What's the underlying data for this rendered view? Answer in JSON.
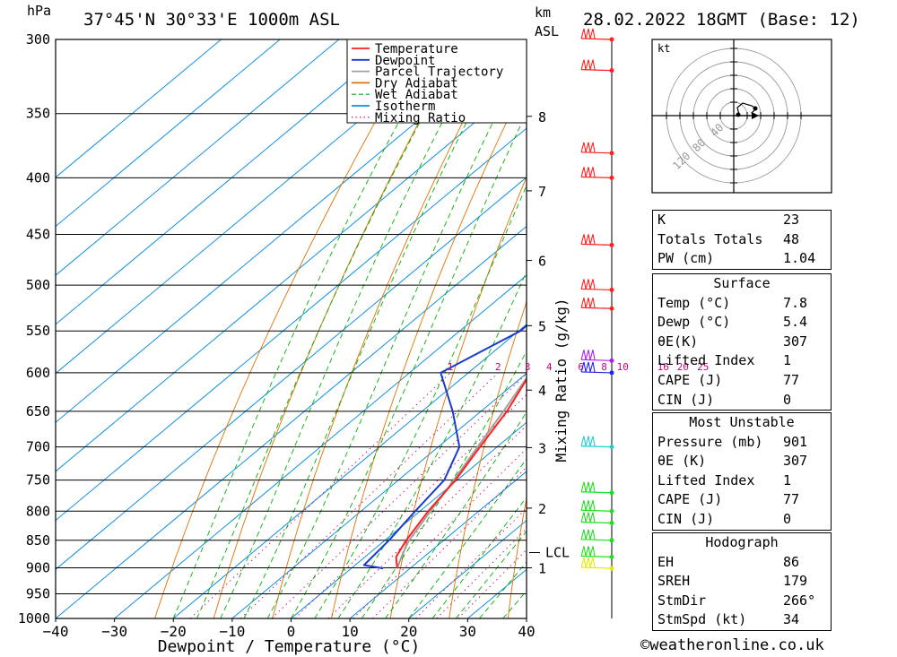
{
  "header": {
    "location": "37°45'N 30°33'E 1000m ASL",
    "datetime": "28.02.2022 18GMT (Base: 12)",
    "unit_left": "hPa",
    "unit_right_1": "km",
    "unit_right_2": "ASL"
  },
  "chart_data": {
    "type": "skew-t",
    "xlabel": "Dewpoint / Temperature (°C)",
    "mixing_ratio_axis_label": "Mixing Ratio (g/kg)",
    "x_ticks": [
      "−40",
      "−30",
      "−20",
      "−10",
      "0",
      "10",
      "20",
      "30",
      "40"
    ],
    "x_range": [
      -40,
      40
    ],
    "pressure_ticks": [
      300,
      350,
      400,
      450,
      500,
      550,
      600,
      650,
      700,
      750,
      800,
      850,
      900,
      950,
      1000
    ],
    "pressure_range": [
      300,
      1000
    ],
    "km_ticks": [
      {
        "label": "8",
        "p": 352
      },
      {
        "label": "7",
        "p": 411
      },
      {
        "label": "6",
        "p": 475
      },
      {
        "label": "5",
        "p": 544
      },
      {
        "label": "4",
        "p": 622
      },
      {
        "label": "3",
        "p": 701
      },
      {
        "label": "2",
        "p": 795
      },
      {
        "label": "1",
        "p": 900
      }
    ],
    "lcl": {
      "label": "LCL",
      "p": 872
    },
    "mixing_ratio_labels": [
      "1",
      "2",
      "3",
      "4",
      "6",
      "8",
      "10",
      "16",
      "20",
      "25"
    ],
    "legend": [
      {
        "name": "Temperature",
        "color": "#ff2020",
        "style": "solid"
      },
      {
        "name": "Dewpoint",
        "color": "#1a3ccc",
        "style": "solid"
      },
      {
        "name": "Parcel Trajectory",
        "color": "#a0a0a0",
        "style": "solid"
      },
      {
        "name": "Dry Adiabat",
        "color": "#e07000",
        "style": "solid"
      },
      {
        "name": "Wet Adiabat",
        "color": "#00b000",
        "style": "dashed"
      },
      {
        "name": "Isotherm",
        "color": "#1090e0",
        "style": "solid"
      },
      {
        "name": "Mixing Ratio",
        "color": "#d0007a",
        "style": "dotted"
      }
    ],
    "legend_position": "top-right",
    "series": [
      {
        "name": "Temperature",
        "points": [
          [
            901,
            7.8
          ],
          [
            880,
            5.3
          ],
          [
            850,
            3.6
          ],
          [
            800,
            1.4
          ],
          [
            750,
            -0.3
          ],
          [
            700,
            -2.9
          ],
          [
            650,
            -5.6
          ],
          [
            600,
            -9.4
          ],
          [
            550,
            -13.6
          ],
          [
            500,
            -17.7
          ],
          [
            450,
            -23.2
          ],
          [
            400,
            -30.6
          ],
          [
            350,
            -39.4
          ],
          [
            300,
            -47.5
          ]
        ]
      },
      {
        "name": "Dewpoint",
        "points": [
          [
            901,
            5.4
          ],
          [
            895,
            1.5
          ],
          [
            850,
            0.7
          ],
          [
            800,
            -0.8
          ],
          [
            750,
            -2.2
          ],
          [
            700,
            -6.4
          ],
          [
            650,
            -14.8
          ],
          [
            600,
            -24.7
          ],
          [
            550,
            -19.7
          ],
          [
            530,
            -19.8
          ],
          [
            520,
            -22.5
          ],
          [
            500,
            -22.6
          ],
          [
            470,
            -20.3
          ],
          [
            440,
            -25.8
          ],
          [
            430,
            -24.7
          ],
          [
            400,
            -29.3
          ],
          [
            380,
            -32.6
          ],
          [
            350,
            -32.7
          ],
          [
            300,
            -41.9
          ]
        ]
      },
      {
        "name": "Parcel Trajectory",
        "points": [
          [
            901,
            7.8
          ],
          [
            872,
            5.6
          ],
          [
            850,
            4.1
          ],
          [
            800,
            1.8
          ],
          [
            750,
            -0.6
          ],
          [
            700,
            -3.3
          ],
          [
            650,
            -6.2
          ],
          [
            600,
            -9.5
          ],
          [
            550,
            -13.4
          ],
          [
            500,
            -17.8
          ],
          [
            450,
            -23.4
          ],
          [
            400,
            -30.2
          ],
          [
            350,
            -38.7
          ],
          [
            300,
            -49.5
          ]
        ]
      }
    ],
    "wind_barbs": [
      {
        "p": 901,
        "color": "#e8e800"
      },
      {
        "p": 880,
        "color": "#22dd22"
      },
      {
        "p": 850,
        "color": "#22dd22"
      },
      {
        "p": 820,
        "color": "#22dd22"
      },
      {
        "p": 800,
        "color": "#22dd22"
      },
      {
        "p": 770,
        "color": "#22dd22"
      },
      {
        "p": 700,
        "color": "#22cccc"
      },
      {
        "p": 600,
        "color": "#2222ee"
      },
      {
        "p": 585,
        "color": "#aa22ee"
      },
      {
        "p": 525,
        "color": "#ff2020"
      },
      {
        "p": 505,
        "color": "#ff2020"
      },
      {
        "p": 460,
        "color": "#ff2020"
      },
      {
        "p": 400,
        "color": "#ff2020"
      },
      {
        "p": 380,
        "color": "#ff2020"
      },
      {
        "p": 320,
        "color": "#ff2020"
      },
      {
        "p": 300,
        "color": "#ff2020"
      }
    ]
  },
  "hodograph": {
    "unit": "kt",
    "ring_labels": [
      "40",
      "80",
      "120"
    ]
  },
  "indices": {
    "k_label": "K",
    "k_value": "23",
    "tt_label": "Totals Totals",
    "tt_value": "48",
    "pw_label": "PW (cm)",
    "pw_value": "1.04"
  },
  "surface": {
    "title": "Surface",
    "temp_label": "Temp (°C)",
    "temp_value": "7.8",
    "dewp_label": "Dewp (°C)",
    "dewp_value": "5.4",
    "theta_label": "θE(K)",
    "theta_value": "307",
    "li_label": "Lifted Index",
    "li_value": "1",
    "cape_label": "CAPE (J)",
    "cape_value": "77",
    "cin_label": "CIN (J)",
    "cin_value": "0"
  },
  "most_unstable": {
    "title": "Most Unstable",
    "pressure_label": "Pressure (mb)",
    "pressure_value": "901",
    "theta_label": "θE (K)",
    "theta_value": "307",
    "li_label": "Lifted Index",
    "li_value": "1",
    "cape_label": "CAPE (J)",
    "cape_value": "77",
    "cin_label": "CIN (J)",
    "cin_value": "0"
  },
  "hodo_table": {
    "title": "Hodograph",
    "eh_label": "EH",
    "eh_value": "86",
    "sreh_label": "SREH",
    "sreh_value": "179",
    "stmdir_label": "StmDir",
    "stmdir_value": "266°",
    "stmspd_label": "StmSpd (kt)",
    "stmspd_value": "34"
  },
  "credit": "©weatheronline.co.uk"
}
